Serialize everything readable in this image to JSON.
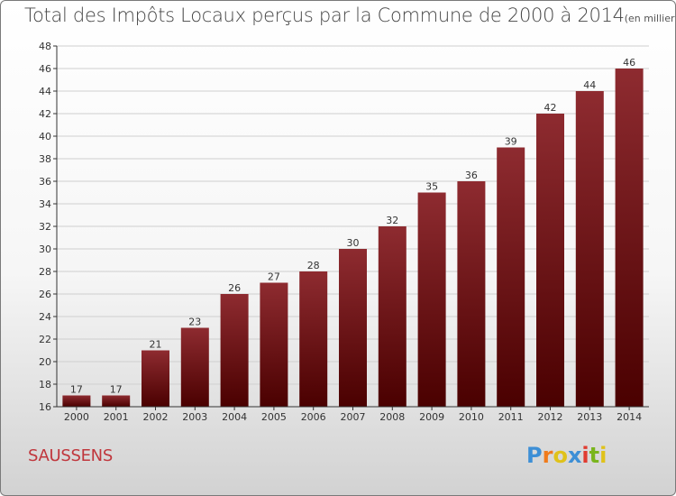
{
  "title": "Total des Impôts Locaux perçus par la Commune de 2000 à 2014",
  "unit_note": "(en milliers d'€)",
  "commune_name": "SAUSSENS",
  "logo": {
    "text": "Proxiti",
    "letter_colors": [
      "#3d8fd6",
      "#f07b1c",
      "#e0c21a",
      "#3d8fd6",
      "#e03c31",
      "#7ab51d",
      "#e0c21a"
    ]
  },
  "colors": {
    "bar_top": "#8e2b30",
    "bar_bottom": "#4a0000",
    "grid": "#cfcfcf",
    "axis": "#333333",
    "commune": "#c0363c"
  },
  "chart_data": {
    "type": "bar",
    "title": "Total des Impôts Locaux perçus par la Commune de 2000 à 2014",
    "categories": [
      "2000",
      "2001",
      "2002",
      "2003",
      "2004",
      "2005",
      "2006",
      "2007",
      "2008",
      "2009",
      "2010",
      "2011",
      "2012",
      "2013",
      "2014"
    ],
    "values": [
      17,
      17,
      21,
      23,
      26,
      27,
      28,
      30,
      32,
      35,
      36,
      39,
      42,
      44,
      46
    ],
    "ylim": [
      16,
      48
    ],
    "yticks": [
      16,
      18,
      20,
      22,
      24,
      26,
      28,
      30,
      32,
      34,
      36,
      38,
      40,
      42,
      44,
      46,
      48
    ],
    "grid": true,
    "data_labels": true,
    "xlabel": "",
    "ylabel": ""
  }
}
